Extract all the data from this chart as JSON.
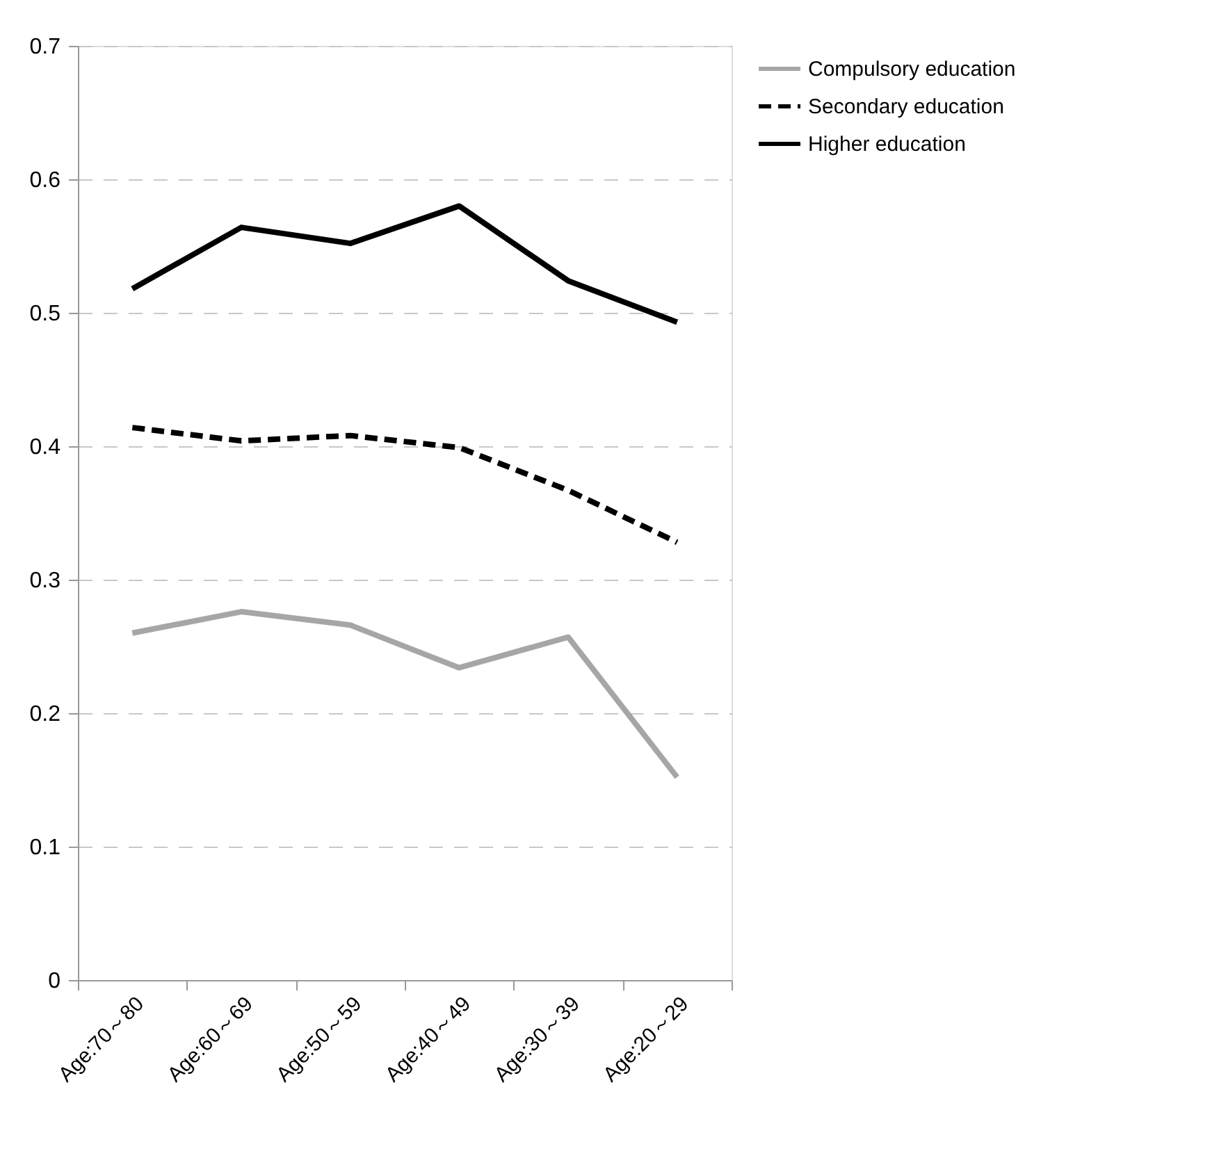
{
  "chart_data": {
    "type": "line",
    "categories": [
      "Age:70～80",
      "Age:60～69",
      "Age:50～59",
      "Age:40～49",
      "Age:30～39",
      "Age:20～29"
    ],
    "series": [
      {
        "name": "Compulsory education",
        "color": "#a6a6a6",
        "line_style": "solid",
        "values": [
          0.26,
          0.276,
          0.266,
          0.234,
          0.257,
          0.152
        ]
      },
      {
        "name": "Secondary education",
        "color": "#000000",
        "line_style": "dashed",
        "values": [
          0.414,
          0.404,
          0.408,
          0.399,
          0.367,
          0.328
        ]
      },
      {
        "name": "Higher education",
        "color": "#000000",
        "line_style": "solid",
        "values": [
          0.518,
          0.564,
          0.552,
          0.58,
          0.524,
          0.493
        ]
      }
    ],
    "ylim": [
      0,
      0.7
    ],
    "yticks": [
      0,
      0.1,
      0.2,
      0.3,
      0.4,
      0.5,
      0.6,
      0.7
    ],
    "grid": "y",
    "legend": "right",
    "marker": "none"
  }
}
